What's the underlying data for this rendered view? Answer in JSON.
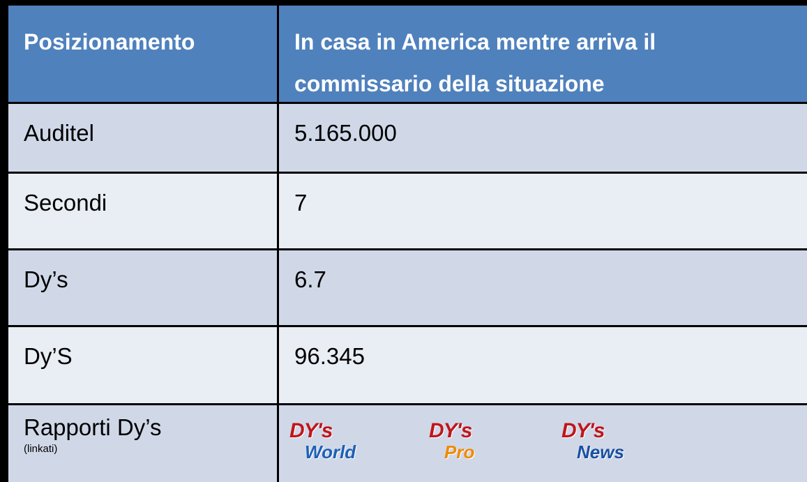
{
  "table": {
    "header": [
      "Posizionamento",
      "In casa in America mentre arriva il commissario della situazione"
    ],
    "rows": [
      [
        "Auditel",
        "5.165.000"
      ],
      [
        "Secondi",
        "7"
      ],
      [
        "Dy’s",
        "6.7"
      ],
      [
        "Dy’S",
        "96.345"
      ]
    ],
    "footer": {
      "label": "Rapporti Dy’s",
      "note": "(linkati)",
      "logos": [
        {
          "top": "DY's",
          "bottom": "World"
        },
        {
          "top": "DY's",
          "bottom": "Pro"
        },
        {
          "top": "DY's",
          "bottom": "News"
        }
      ]
    }
  }
}
